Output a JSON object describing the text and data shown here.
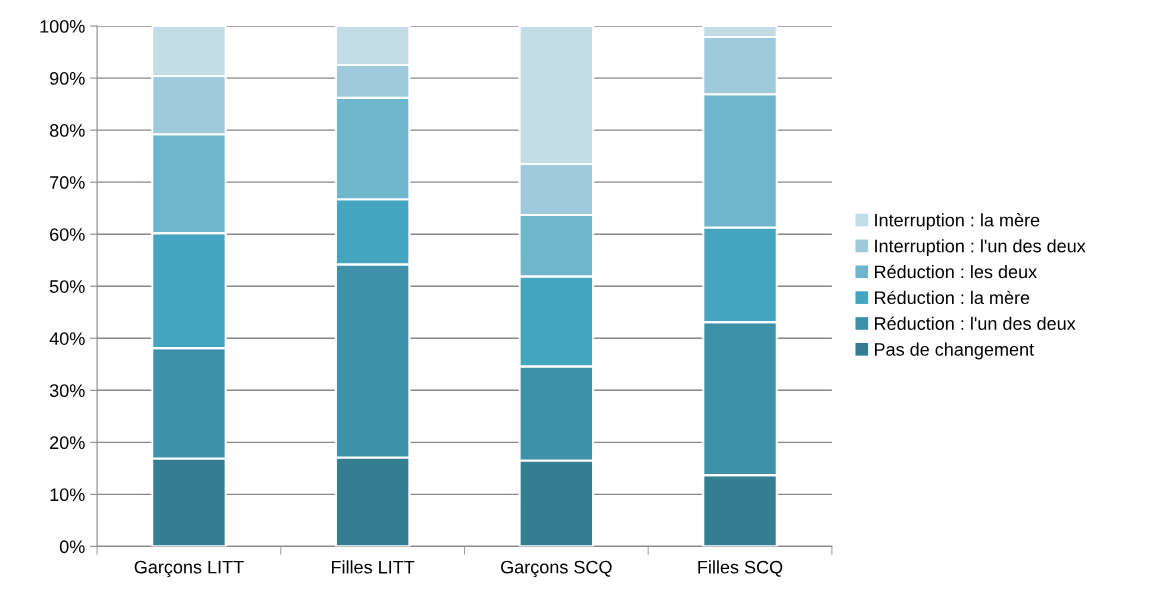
{
  "chart_data": {
    "type": "bar",
    "stacked": true,
    "categories": [
      "Garçons LITT",
      "Filles LITT",
      "Garçons SCQ",
      "Filles SCQ"
    ],
    "series": [
      {
        "name": "Pas de changement",
        "color": "#357d91",
        "values": [
          16.9,
          17.1,
          16.5,
          13.7
        ]
      },
      {
        "name": "Réduction : l'un des deux",
        "color": "#3f91aa",
        "values": [
          21.2,
          37.1,
          18.1,
          29.4
        ]
      },
      {
        "name": "Réduction : la mère",
        "color": "#46a5be",
        "values": [
          22.1,
          12.5,
          17.3,
          18.2
        ]
      },
      {
        "name": "Réduction : les deux",
        "color": "#6fb5cc",
        "values": [
          19.0,
          19.5,
          11.8,
          25.6
        ]
      },
      {
        "name": "Interruption : l'un des deux",
        "color": "#9ecadb",
        "values": [
          11.2,
          6.3,
          9.8,
          11.0
        ]
      },
      {
        "name": "Interruption : la mère",
        "color": "#c2dde6",
        "values": [
          9.6,
          7.5,
          26.5,
          2.1
        ]
      }
    ],
    "ylim": [
      0,
      100
    ],
    "yticks": [
      {
        "value": 0,
        "label": "0%"
      },
      {
        "value": 10,
        "label": "10%"
      },
      {
        "value": 20,
        "label": "20%"
      },
      {
        "value": 30,
        "label": "30%"
      },
      {
        "value": 40,
        "label": "40%"
      },
      {
        "value": 50,
        "label": "50%"
      },
      {
        "value": 60,
        "label": "60%"
      },
      {
        "value": 70,
        "label": "70%"
      },
      {
        "value": 80,
        "label": "80%"
      },
      {
        "value": 90,
        "label": "90%"
      },
      {
        "value": 100,
        "label": "100%"
      }
    ],
    "grid": "y",
    "legend": "right"
  }
}
